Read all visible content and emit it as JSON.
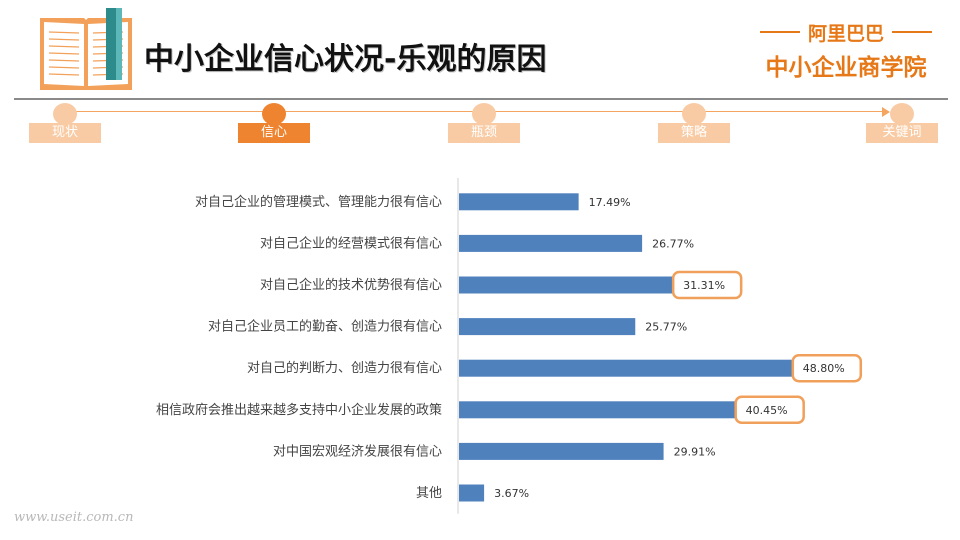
{
  "header": {
    "title": "中小企业信心状况-乐观的原因"
  },
  "brand": {
    "top": "阿里巴巴",
    "bottom": "中小企业商学院",
    "accent_color": "#e67817"
  },
  "nav": {
    "steps": [
      {
        "label": "现状",
        "active": false
      },
      {
        "label": "信心",
        "active": true
      },
      {
        "label": "瓶颈",
        "active": false
      },
      {
        "label": "策略",
        "active": false
      },
      {
        "label": "关键词",
        "active": false
      }
    ]
  },
  "watermark": "www.useit.com.cn",
  "chart_data": {
    "type": "bar",
    "orientation": "horizontal",
    "categories": [
      "对自己企业的管理模式、管理能力很有信心",
      "对自己企业的经营模式很有信心",
      "对自己企业的技术优势很有信心",
      "对自己企业员工的勤奋、创造力很有信心",
      "对自己的判断力、创造力很有信心",
      "相信政府会推出越来越多支持中小企业发展的政策",
      "对中国宏观经济发展很有信心",
      "其他"
    ],
    "values": [
      17.49,
      26.77,
      31.31,
      25.77,
      48.8,
      40.45,
      29.91,
      3.67
    ],
    "value_labels": [
      "17.49%",
      "26.77%",
      "31.31%",
      "25.77%",
      "48.80%",
      "40.45%",
      "29.91%",
      "3.67%"
    ],
    "highlighted": [
      false,
      false,
      true,
      false,
      true,
      true,
      false,
      false
    ],
    "xlim": [
      0,
      50
    ],
    "bar_color": "#4f81bd",
    "highlight_color": "#f0a05a",
    "grid": false
  }
}
